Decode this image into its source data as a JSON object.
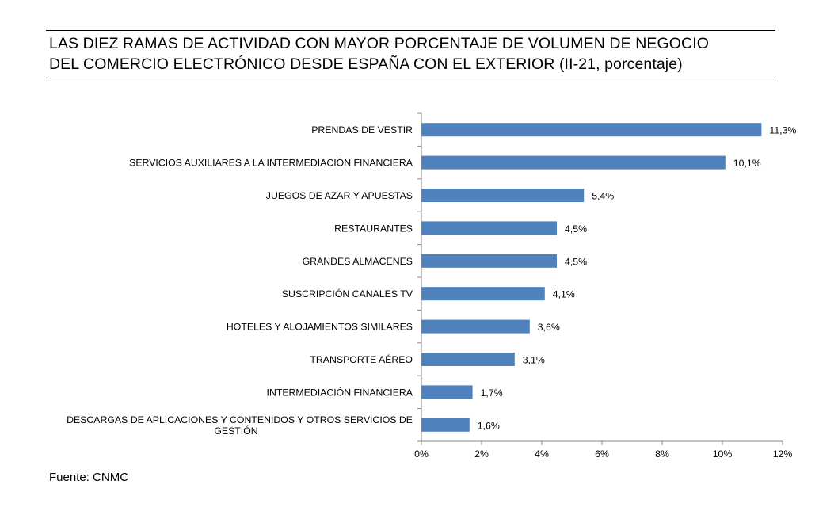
{
  "title": {
    "line1": "LAS DIEZ RAMAS DE ACTIVIDAD CON MAYOR PORCENTAJE DE VOLUMEN DE NEGOCIO",
    "line2": "DEL COMERCIO ELECTRÓNICO DESDE ESPAÑA CON EL EXTERIOR (II-21, porcentaje)"
  },
  "source": "Fuente: CNMC",
  "colors": {
    "bar": "#4F81BD",
    "axis": "#868686",
    "text": "#000000"
  },
  "chart_data": {
    "type": "bar",
    "orientation": "horizontal",
    "categories": [
      [
        "PRENDAS DE VESTIR"
      ],
      [
        "SERVICIOS AUXILIARES A LA INTERMEDIACIÓN FINANCIERA"
      ],
      [
        "JUEGOS DE AZAR Y APUESTAS"
      ],
      [
        "RESTAURANTES"
      ],
      [
        "GRANDES ALMACENES"
      ],
      [
        "SUSCRIPCIÓN CANALES TV"
      ],
      [
        "HOTELES  Y ALOJAMIENTOS SIMILARES"
      ],
      [
        "TRANSPORTE AÉREO"
      ],
      [
        "INTERMEDIACIÓN FINANCIERA"
      ],
      [
        "DESCARGAS DE APLICACIONES Y CONTENIDOS Y OTROS SERVICIOS DE",
        "GESTIÓN"
      ]
    ],
    "values": [
      11.3,
      10.1,
      5.4,
      4.5,
      4.5,
      4.1,
      3.6,
      3.1,
      1.7,
      1.6
    ],
    "data_labels": [
      "11,3%",
      "10,1%",
      "5,4%",
      "4,5%",
      "4,5%",
      "4,1%",
      "3,6%",
      "3,1%",
      "1,7%",
      "1,6%"
    ],
    "xlim": [
      0,
      12
    ],
    "xticks": [
      0,
      2,
      4,
      6,
      8,
      10,
      12
    ],
    "xtick_labels": [
      "0%",
      "2%",
      "4%",
      "6%",
      "8%",
      "10%",
      "12%"
    ],
    "grid": false,
    "legend": "none"
  }
}
